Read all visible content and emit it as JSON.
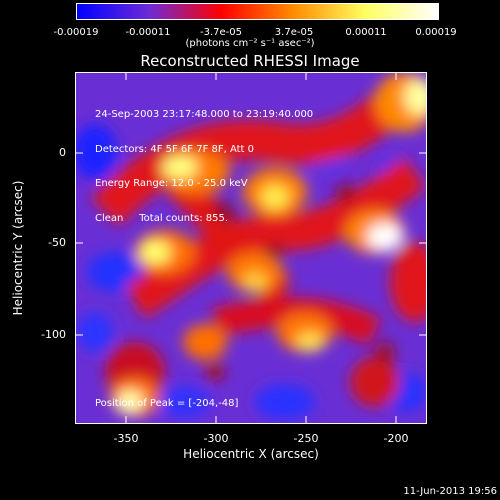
{
  "colorbar": {
    "ticks": [
      "-0.00019",
      "-0.00011",
      "-3.7e-05",
      "3.7e-05",
      "0.00011",
      "0.00019"
    ],
    "unit": "(photons cm⁻² s⁻¹ asec⁻²)",
    "colors": [
      "#0000ff",
      "#6e2bd6",
      "#ff0000",
      "#ff8c00",
      "#ffff60",
      "#ffffff"
    ]
  },
  "title": "Reconstructed RHESSI Image",
  "info_lines": {
    "line1": "24-Sep-2003 23:17:48.000 to 23:19:40.000",
    "line2": "Detectors: 4F 5F 6F 7F 8F, Att 0",
    "line3": "Energy Range: 12.0 - 25.0 keV",
    "line4": "Clean     Total counts: 855."
  },
  "peak_text": "Position of Peak = [-204,-48]",
  "xaxis": {
    "label": "Heliocentric X (arcsec)",
    "ticks": [
      "-350",
      "-300",
      "-250",
      "-200"
    ]
  },
  "yaxis": {
    "label": "Heliocentric Y (arcsec)",
    "ticks": [
      "0",
      "-50",
      "-100"
    ]
  },
  "footer": "11-Jun-2013 19:56"
}
